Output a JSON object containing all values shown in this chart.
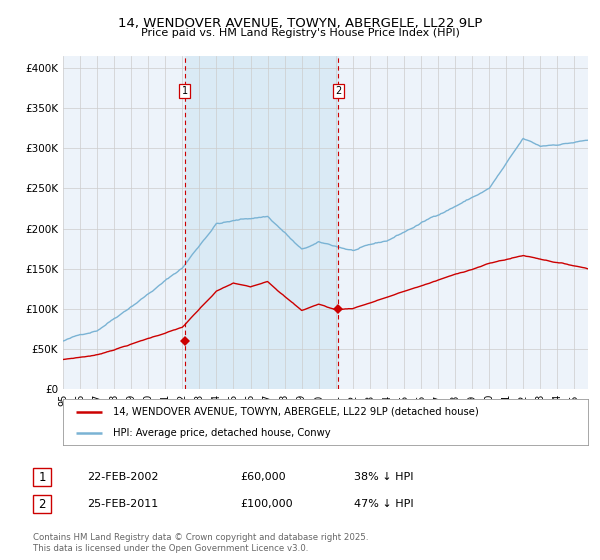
{
  "title": "14, WENDOVER AVENUE, TOWYN, ABERGELE, LL22 9LP",
  "subtitle": "Price paid vs. HM Land Registry's House Price Index (HPI)",
  "ylabel_ticks": [
    "£0",
    "£50K",
    "£100K",
    "£150K",
    "£200K",
    "£250K",
    "£300K",
    "£350K",
    "£400K"
  ],
  "ytick_values": [
    0,
    50000,
    100000,
    150000,
    200000,
    250000,
    300000,
    350000,
    400000
  ],
  "ylim": [
    0,
    415000
  ],
  "xlim_start": 1995.0,
  "xlim_end": 2025.8,
  "hpi_color": "#7ab3d4",
  "price_color": "#cc0000",
  "shade_color": "#daeaf5",
  "grid_color": "#cccccc",
  "vline_color": "#cc0000",
  "legend_line1": "14, WENDOVER AVENUE, TOWYN, ABERGELE, LL22 9LP (detached house)",
  "legend_line2": "HPI: Average price, detached house, Conwy",
  "sale1_date": 2002.13,
  "sale1_price": 60000,
  "sale1_label": "1",
  "sale2_date": 2011.14,
  "sale2_price": 100000,
  "sale2_label": "2",
  "annotation1_date": "22-FEB-2002",
  "annotation1_price": "£60,000",
  "annotation1_pct": "38% ↓ HPI",
  "annotation2_date": "25-FEB-2011",
  "annotation2_price": "£100,000",
  "annotation2_pct": "47% ↓ HPI",
  "footnote": "Contains HM Land Registry data © Crown copyright and database right 2025.\nThis data is licensed under the Open Government Licence v3.0.",
  "background_color": "#ffffff",
  "plot_bg_color": "#edf3fa"
}
